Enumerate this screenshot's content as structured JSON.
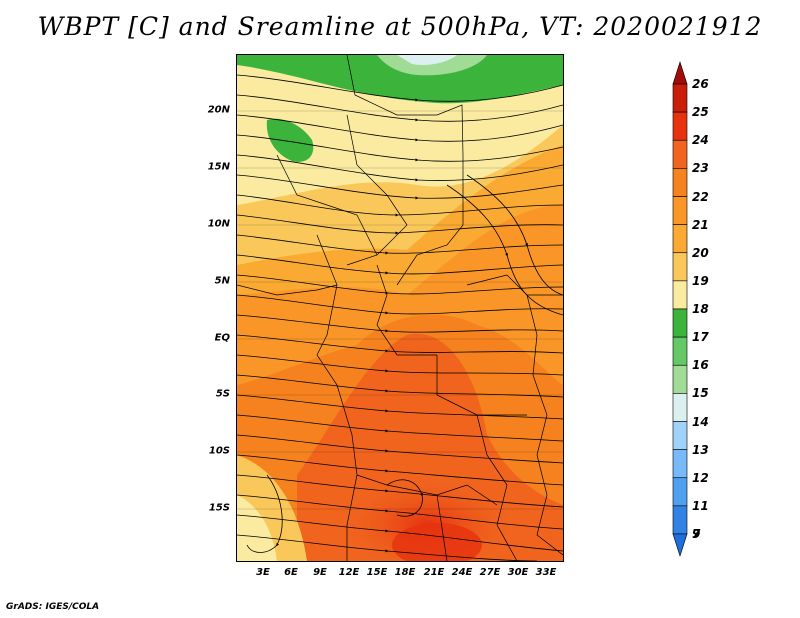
{
  "title": "WBPT [C] and Sreamline at 500hPa, VT: 2020021912",
  "footer": "GrADS: IGES/COLA",
  "map": {
    "region": "Central and Southern Africa",
    "field": "Wet-bulb potential temperature with streamlines",
    "lat_labels": [
      "20N",
      "15N",
      "10N",
      "5N",
      "EQ",
      "5S",
      "10S",
      "15S"
    ],
    "lon_labels": [
      "3E",
      "6E",
      "9E",
      "12E",
      "15E",
      "18E",
      "21E",
      "24E",
      "27E",
      "30E",
      "33E"
    ]
  },
  "colorbar": {
    "labels": [
      "26",
      "25",
      "24",
      "23",
      "22",
      "21",
      "20",
      "19",
      "18",
      "17",
      "16",
      "15",
      "14",
      "13",
      "12",
      "11",
      "9",
      "7"
    ],
    "colors": [
      "#a50a0a",
      "#c81e0a",
      "#e6320f",
      "#f0641e",
      "#f5821e",
      "#fa9628",
      "#faaa32",
      "#fac85a",
      "#faeba0",
      "#3cb43c",
      "#64c864",
      "#a0dc96",
      "#dcf0f0",
      "#a0d2fa",
      "#78b9fa",
      "#50a0f0",
      "#3282e6",
      "#1e6edc"
    ]
  }
}
